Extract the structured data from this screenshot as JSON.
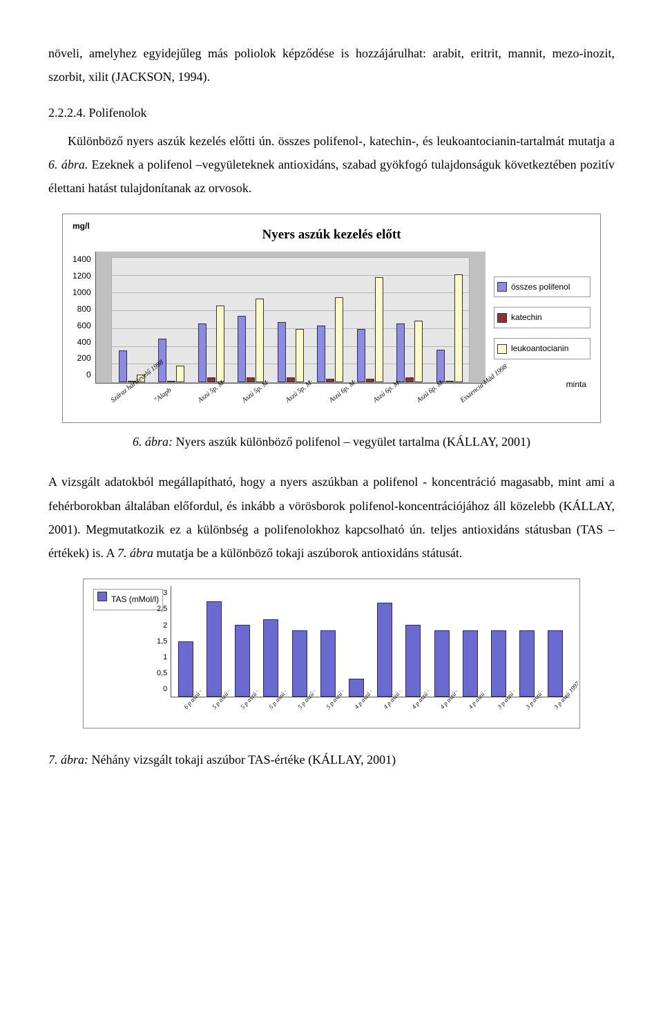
{
  "para1": "növeli, amelyhez egyidejűleg más poliolok képződése is hozzájárulhat: arabit, eritrit, mannit, mezo-inozit, szorbit, xilit (JACKSON, 1994).",
  "heading": "2.2.2.4. Polifenolok",
  "para2_a": "Különböző nyers aszúk kezelés előtti ún. összes polifenol-, katechin-, és leukoantocianin-tartalmát mutatja a ",
  "para2_b": "6. ábra.",
  "para2_c": " Ezeknek a polifenol –vegyületeknek antioxidáns, szabad gyökfogó tulajdonságuk következtében pozitív élettani hatást tulajdonítanak az orvosok.",
  "chart1": {
    "title": "Nyers aszúk kezelés előtt",
    "y_unit": "mg/l",
    "y_max": 1400,
    "y_ticks": [
      "1400",
      "1200",
      "1000",
      "800",
      "600",
      "400",
      "200",
      "0"
    ],
    "categories": [
      "Száraz hárslevelű 1998",
      "\"Alapb",
      "Aszú 5p. M·",
      "Aszú 5p. M·",
      "Aszú 5p. M·",
      "Aszú 6p. M·",
      "Aszú 6p. M·",
      "Aszú 6p. M·",
      "Esszencia Mád 1998"
    ],
    "series": [
      {
        "name": "összes polifenol",
        "color": "#8b8be6",
        "values": [
          360,
          490,
          660,
          750,
          680,
          640,
          600,
          660,
          370
        ]
      },
      {
        "name": "katechin",
        "color": "#8e2f3a",
        "values": [
          20,
          15,
          55,
          55,
          55,
          40,
          40,
          55,
          10
        ]
      },
      {
        "name": "leukoantocianin",
        "color": "#fdf9c9",
        "values": [
          90,
          190,
          860,
          940,
          600,
          960,
          1180,
          690,
          1210
        ]
      }
    ],
    "plot_bg": "#e6e6e6",
    "outer_bg": "#c0c0c0",
    "minta_label": "minta"
  },
  "caption1_a": "6. ábra:",
  "caption1_b": " Nyers aszúk különböző polifenol – vegyület tartalma (KÁLLAY, 2001)",
  "para3_a": "A vizsgált adatokból megállapítható, hogy a nyers aszúkban a polifenol - koncentráció magasabb, mint ami a fehérborokban általában előfordul, és inkább a vörösborok polifenol-koncentrációjához áll közelebb (KÁLLAY, 2001). Megmutatkozik ez a különbség a polifenolokhoz kapcsolható ún. teljes antioxidáns státusban (TAS – értékek) is. A ",
  "para3_b": "7. ábra",
  "para3_c": " mutatja be a különböző tokaji aszúborok antioxidáns státusát.",
  "chart2": {
    "legend_label": "TAS (mMol/l)",
    "legend_color": "#6a6ad0",
    "y_max": 3,
    "y_ticks": [
      "3",
      "2,5",
      "2",
      "1,5",
      "1",
      "0,5",
      "0"
    ],
    "categories": [
      "6 p aszú ·",
      "5 p aszú ·",
      "5 p aszú ·",
      "5 p aszú ·",
      "5 p aszú ·",
      "5 p aszú ·",
      "4 p aszú ·",
      "4 p aszú ·",
      "4 p aszú ·",
      "4 p aszú ·",
      "4 p aszú ·",
      "3 p aszú ·",
      "3 p aszú ·",
      "3 p aszú 1997"
    ],
    "values": [
      1.5,
      2.6,
      1.95,
      2.1,
      1.8,
      1.8,
      0.5,
      2.55,
      1.95,
      1.8,
      1.8,
      1.8,
      1.8,
      1.8
    ],
    "bar_color": "#6a6ad0"
  },
  "caption2_a": "7. ábra:",
  "caption2_b": " Néhány vizsgált tokaji aszúbor TAS-értéke (KÁLLAY, 2001)"
}
